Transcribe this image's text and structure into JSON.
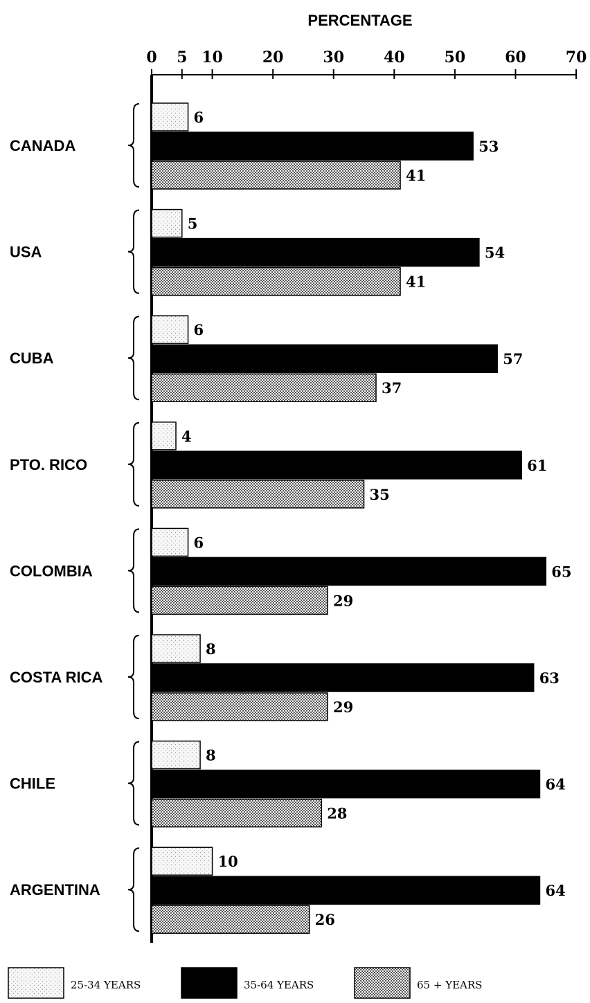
{
  "chart_data": {
    "type": "bar",
    "orientation": "horizontal",
    "title": "PERCENTAGE",
    "xlim": [
      0,
      70
    ],
    "ticks": [
      0,
      5,
      10,
      20,
      30,
      40,
      50,
      60,
      70
    ],
    "tick_labels": [
      "0",
      "5",
      "10",
      "20",
      "30",
      "40",
      "50",
      "60",
      "70"
    ],
    "grid": false,
    "legend_position": "bottom",
    "categories": [
      "CANADA",
      "USA",
      "CUBA",
      "PTO. RICO",
      "COLOMBIA",
      "COSTA RICA",
      "CHILE",
      "ARGENTINA"
    ],
    "series": [
      {
        "name": "25-34 YEARS",
        "color": "#f2f2f2",
        "pattern": "light-stipple",
        "values": [
          6,
          5,
          6,
          4,
          6,
          8,
          8,
          10
        ]
      },
      {
        "name": "35-64 YEARS",
        "color": "#000000",
        "pattern": "solid",
        "values": [
          53,
          54,
          57,
          61,
          65,
          63,
          64,
          64
        ]
      },
      {
        "name": "65 + YEARS",
        "color": "#c8c8c8",
        "pattern": "dense-dots",
        "values": [
          41,
          41,
          37,
          35,
          29,
          29,
          28,
          26
        ]
      }
    ]
  }
}
